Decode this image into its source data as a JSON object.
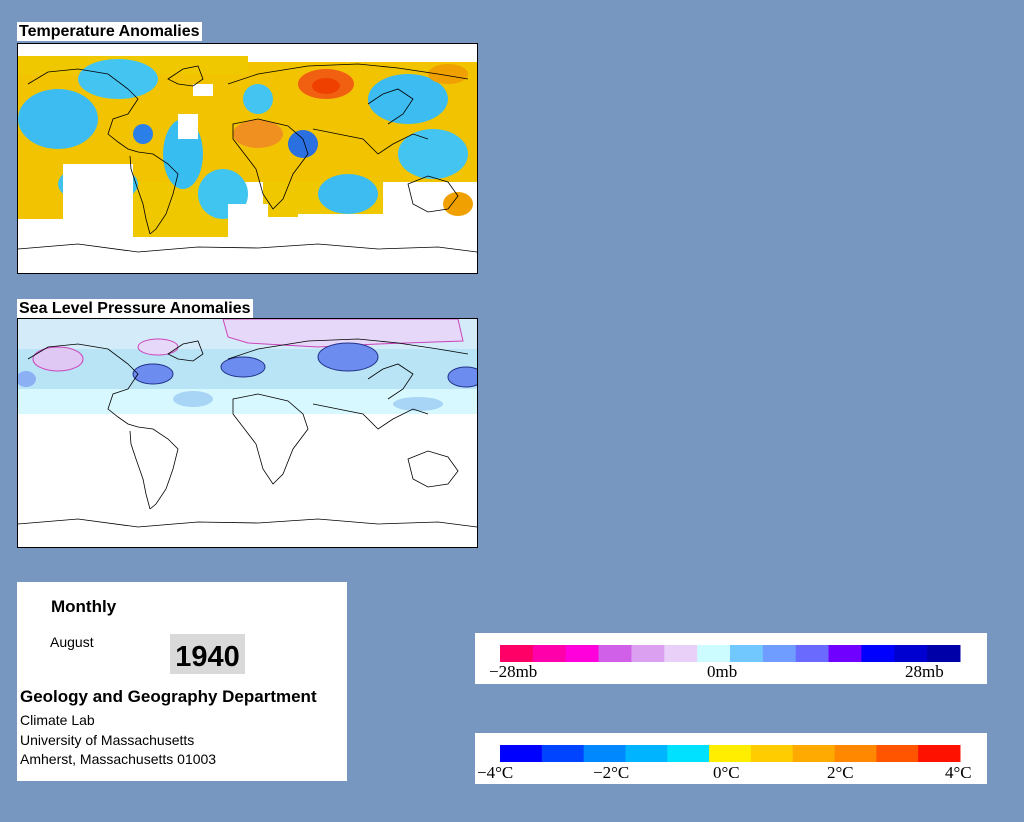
{
  "temperature_map": {
    "title": "Temperature Anomalies"
  },
  "pressure_map": {
    "title": "Sea Level Pressure Anomalies"
  },
  "info": {
    "frequency": "Monthly",
    "month": "August",
    "year": "1940",
    "department": "Geology and Geography Department",
    "lab": "Climate Lab",
    "university": "University of Massachusetts",
    "address": "Amherst, Massachusetts 01003"
  },
  "pressure_legend": {
    "labels": [
      "−28mb",
      "0mb",
      "28mb"
    ],
    "colors": [
      "#ff0066",
      "#ff00aa",
      "#ff00dd",
      "#d060e8",
      "#dca0f0",
      "#e8d0f8",
      "#ccfcff",
      "#70c8ff",
      "#6e9cff",
      "#6a6aff",
      "#7000ff",
      "#0000ff",
      "#0000d0",
      "#0000a8"
    ]
  },
  "temperature_legend": {
    "labels": [
      "−4°C",
      "−2°C",
      "0°C",
      "2°C",
      "4°C"
    ],
    "colors": [
      "#0000ff",
      "#0044ff",
      "#0088ff",
      "#00b4ff",
      "#00e0ff",
      "#ffee00",
      "#ffcc00",
      "#ffaa00",
      "#ff8800",
      "#ff5500",
      "#ff1100"
    ]
  }
}
